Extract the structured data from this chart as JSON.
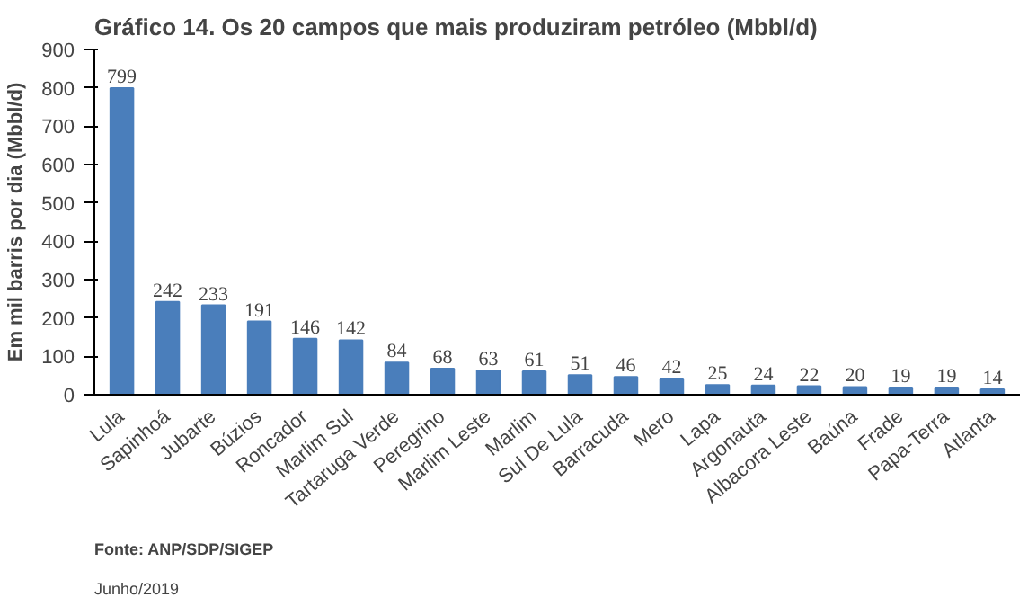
{
  "chart_data": {
    "type": "bar",
    "title": "Gráfico 14. Os 20 campos que mais produziram petróleo (Mbbl/d)",
    "ylabel": "Em mil barris por dia (Mbbl/d)",
    "categories": [
      "Lula",
      "Sapinhoá",
      "Jubarte",
      "Búzios",
      "Roncador",
      "Marlim Sul",
      "Tartaruga Verde",
      "Peregrino",
      "Marlim Leste",
      "Marlim",
      "Sul De Lula",
      "Barracuda",
      "Mero",
      "Lapa",
      "Argonauta",
      "Albacora Leste",
      "Baúna",
      "Frade",
      "Papa-Terra",
      "Atlanta"
    ],
    "values": [
      799,
      242,
      233,
      191,
      146,
      142,
      84,
      68,
      63,
      61,
      51,
      46,
      42,
      25,
      24,
      22,
      20,
      19,
      19,
      14
    ],
    "color": "#4a7ebb",
    "ylim": [
      0,
      900
    ],
    "yticks": [
      0,
      100,
      200,
      300,
      400,
      500,
      600,
      700,
      800,
      900
    ],
    "grid": false,
    "data_labels": true,
    "annotations": [
      "Fonte: ANP/SDP/SIGEP",
      "Junho/2019"
    ]
  }
}
